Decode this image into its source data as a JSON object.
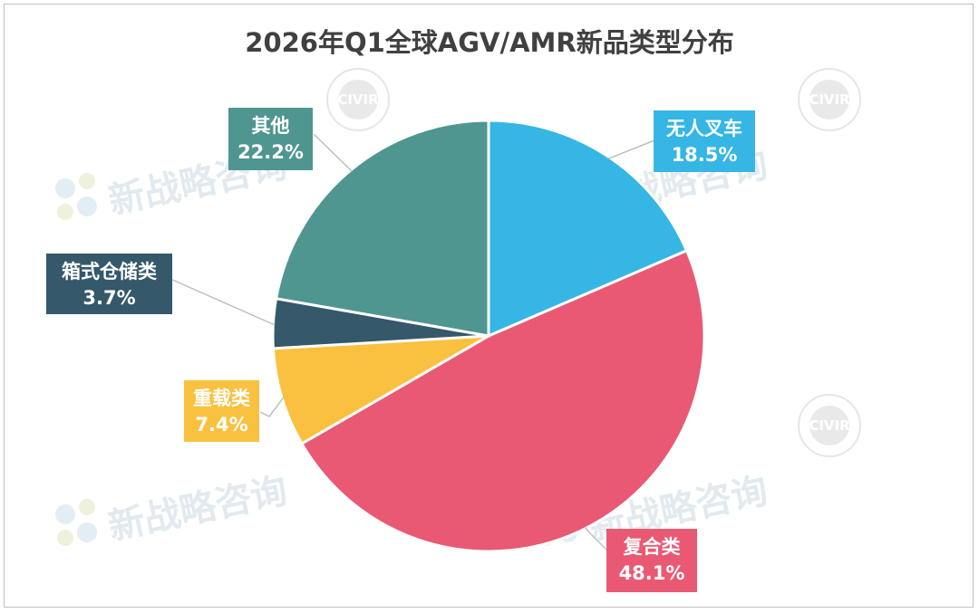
{
  "chart_data": {
    "type": "pie",
    "title": "2026年Q1全球AGV/AMR新品类型分布",
    "slices": [
      {
        "label": "无人叉车",
        "value": 18.5,
        "value_label": "18.5%",
        "color": "#35b6e4"
      },
      {
        "label": "复合类",
        "value": 48.1,
        "value_label": "48.1%",
        "color": "#e95973"
      },
      {
        "label": "重载类",
        "value": 7.4,
        "value_label": "7.4%",
        "color": "#f9c13f"
      },
      {
        "label": "箱式仓储类",
        "value": 3.7,
        "value_label": "3.7%",
        "color": "#35586b"
      },
      {
        "label": "其他",
        "value": 22.2,
        "value_label": "22.2%",
        "color": "#4f9690"
      }
    ],
    "start_angle_deg": 0,
    "direction": "clockwise",
    "legend": "none",
    "data_labels": "outside-callout"
  },
  "watermark": {
    "text": "新战略咨询",
    "seal_text": "CIVIR"
  }
}
